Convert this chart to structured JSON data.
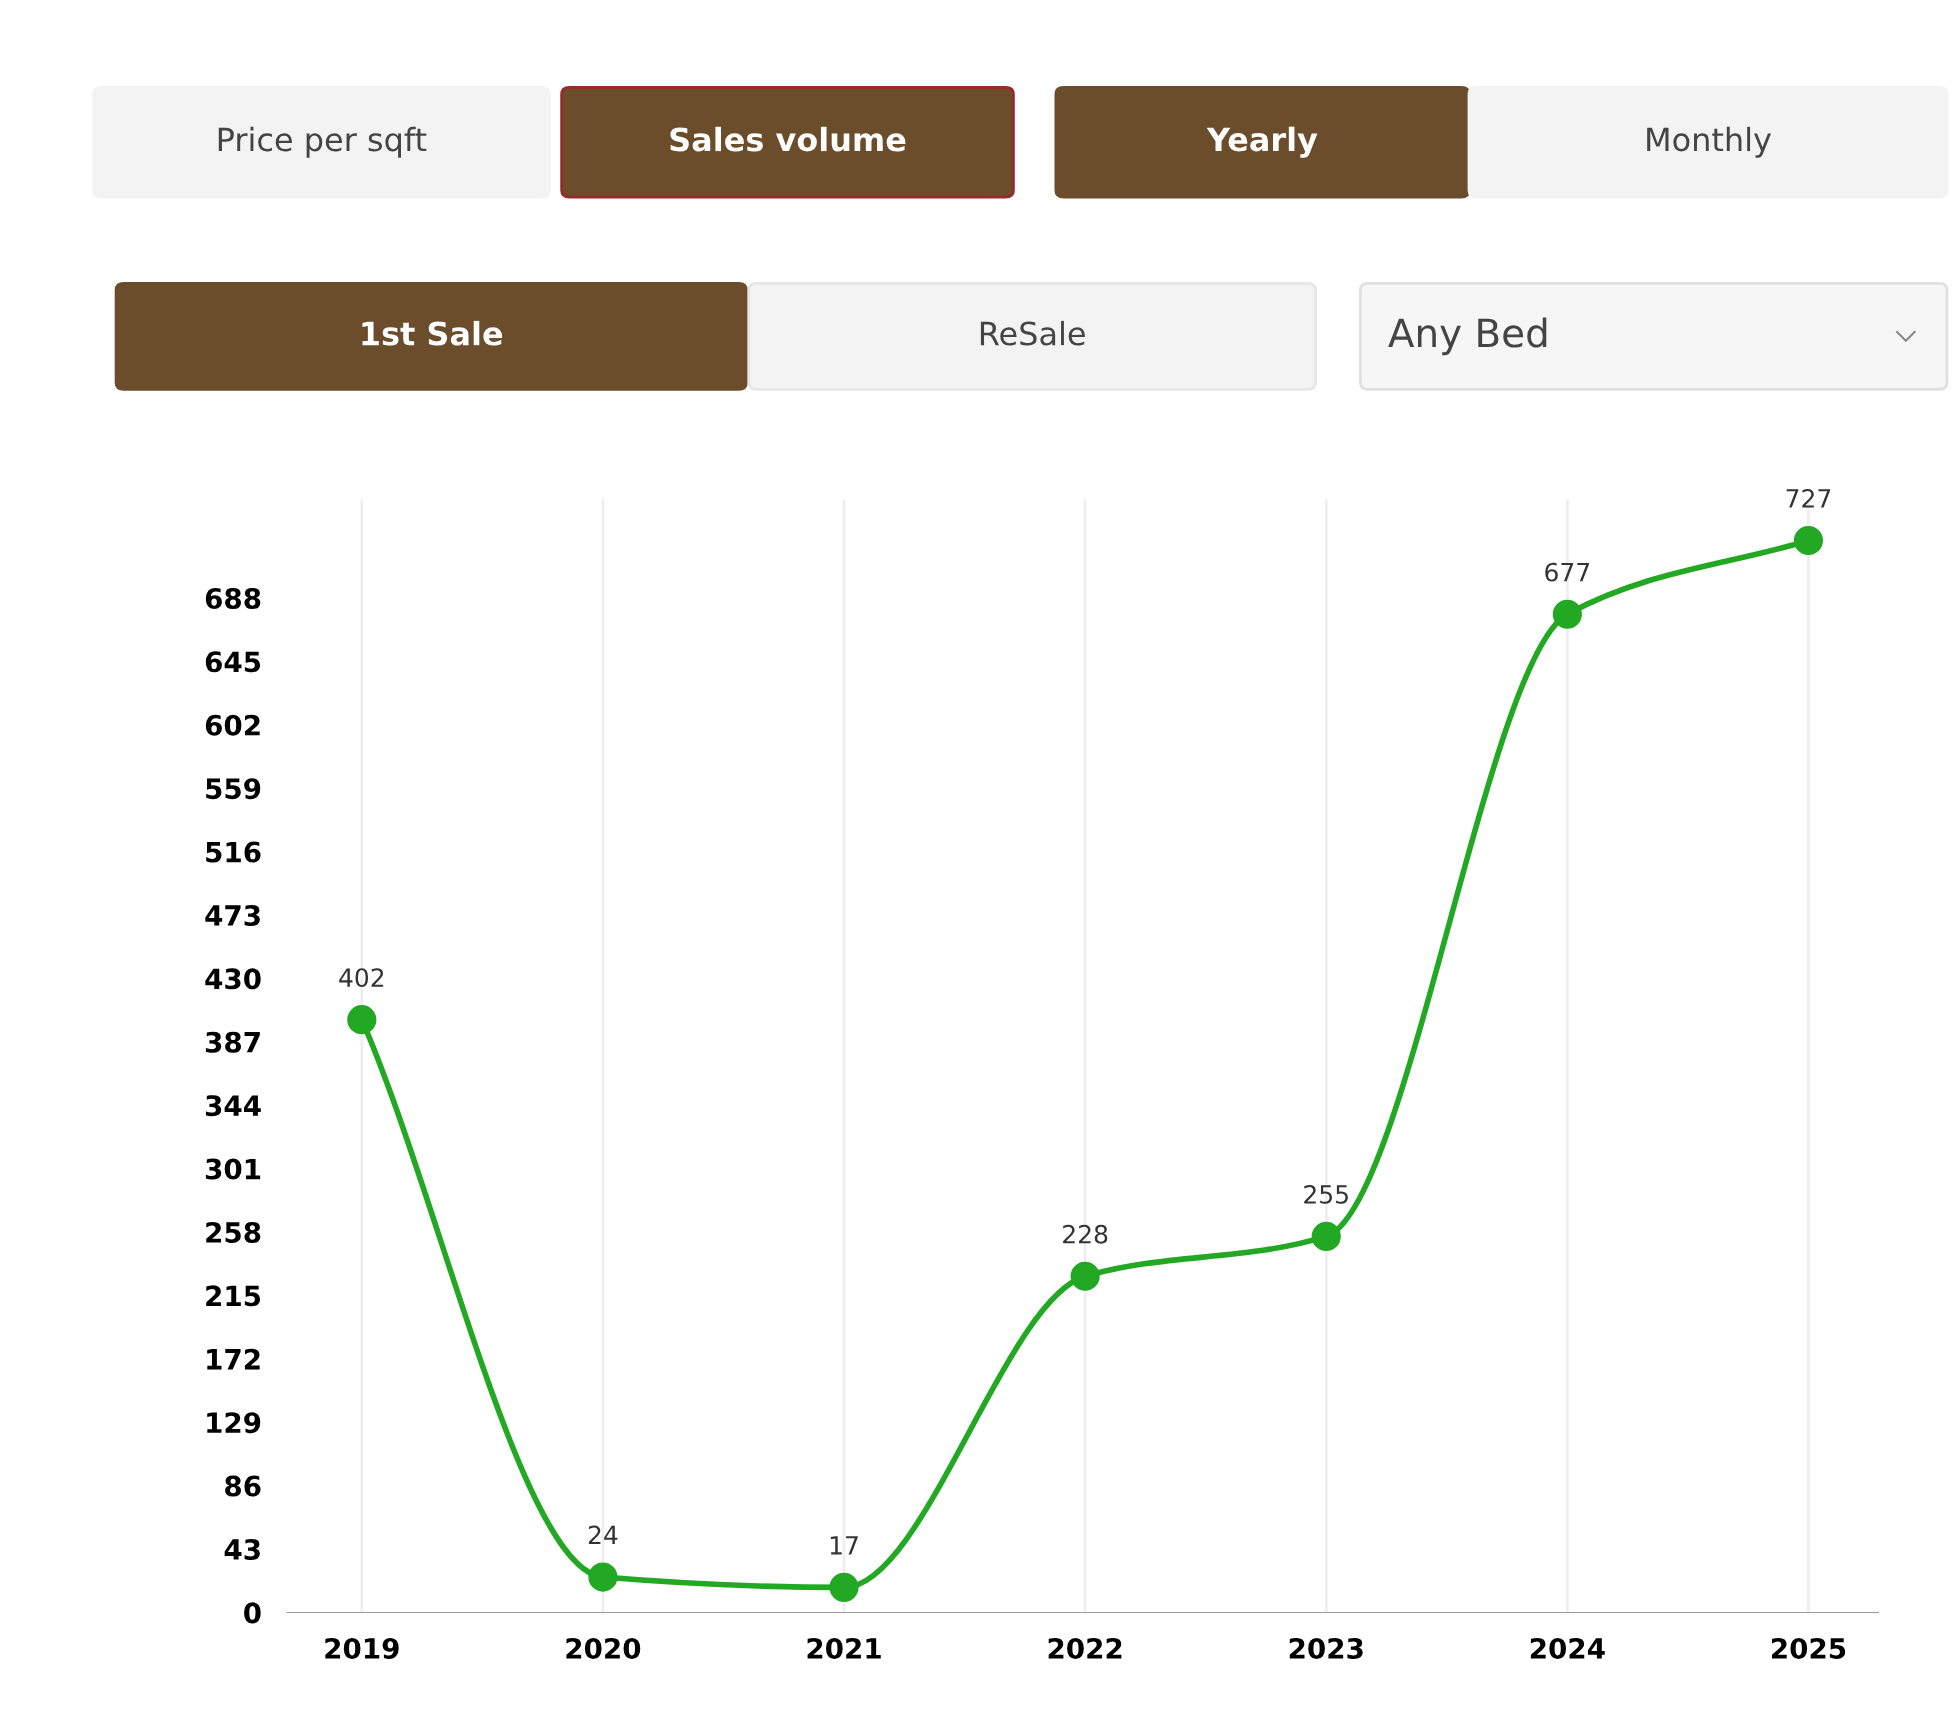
{
  "chart_data": {
    "type": "line",
    "categories": [
      "2019",
      "2020",
      "2021",
      "2022",
      "2023",
      "2024",
      "2025"
    ],
    "series": [
      {
        "color": "#22a822",
        "values": [
          402,
          24,
          17,
          228,
          255,
          677,
          727
        ]
      }
    ],
    "ylim": [
      0,
      755
    ],
    "yticks": [
      0,
      43,
      86,
      129,
      172,
      215,
      258,
      301,
      344,
      387,
      430,
      473,
      516,
      559,
      602,
      645,
      688
    ],
    "grid": "x",
    "marker": "circle",
    "line_style": "solid",
    "data_labels": true,
    "legend": false,
    "annotations": [
      "Price per sqft",
      "Sales volume",
      "Yearly",
      "Monthly",
      "1st Sale",
      "ReSale",
      "Any Bed"
    ]
  }
}
